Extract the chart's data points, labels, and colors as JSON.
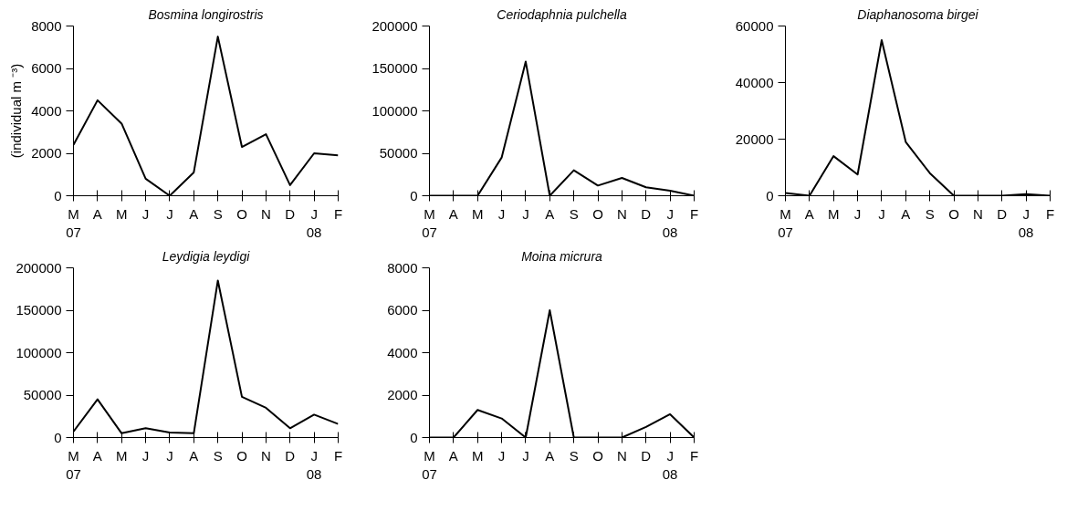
{
  "chart_data": [
    {
      "type": "line",
      "title": "Bosmina longirostris",
      "ylabel": "(individual m ⁻³)",
      "categories": [
        "M\n07",
        "A",
        "M",
        "J",
        "J",
        "A",
        "S",
        "O",
        "N",
        "D",
        "J\n08",
        "F"
      ],
      "series": [
        {
          "color": "#000000",
          "values": [
            2400,
            4500,
            3400,
            800,
            0,
            1100,
            7500,
            2300,
            2900,
            500,
            2000,
            1900
          ]
        }
      ],
      "ylim": [
        0,
        8000
      ],
      "yticks": [
        0,
        2000,
        4000,
        6000,
        8000
      ],
      "line_style": "solid"
    },
    {
      "type": "line",
      "title": "Ceriodaphnia pulchella",
      "categories": [
        "M\n07",
        "A",
        "M",
        "J",
        "J",
        "A",
        "S",
        "O",
        "N",
        "D",
        "J\n08",
        "F"
      ],
      "series": [
        {
          "color": "#000000",
          "values": [
            0,
            0,
            0,
            45000,
            158000,
            0,
            30000,
            12000,
            21000,
            10000,
            6000,
            0
          ]
        }
      ],
      "ylim": [
        0,
        200000
      ],
      "yticks": [
        0,
        50000,
        100000,
        150000,
        200000
      ],
      "line_style": "solid"
    },
    {
      "type": "line",
      "title": "Diaphanosoma birgei",
      "categories": [
        "M\n07",
        "A",
        "M",
        "J",
        "J",
        "A",
        "S",
        "O",
        "N",
        "D",
        "J\n08",
        "F"
      ],
      "series": [
        {
          "color": "#000000",
          "values": [
            1000,
            0,
            14000,
            7500,
            55000,
            19000,
            8000,
            0,
            0,
            0,
            600,
            0
          ]
        }
      ],
      "ylim": [
        0,
        60000
      ],
      "yticks": [
        0,
        20000,
        40000,
        60000
      ],
      "line_style": "solid"
    },
    {
      "type": "line",
      "title": "Leydigia leydigi",
      "categories": [
        "M\n07",
        "A",
        "M",
        "J",
        "J",
        "A",
        "S",
        "O",
        "N",
        "D",
        "J\n08",
        "F"
      ],
      "series": [
        {
          "color": "#000000",
          "values": [
            7000,
            45000,
            5000,
            11000,
            6000,
            5000,
            185000,
            48000,
            35000,
            11000,
            27000,
            16000
          ]
        }
      ],
      "ylim": [
        0,
        200000
      ],
      "yticks": [
        0,
        50000,
        100000,
        150000,
        200000
      ],
      "line_style": "solid"
    },
    {
      "type": "line",
      "title": "Moina micrura",
      "categories": [
        "M\n07",
        "A",
        "M",
        "J",
        "J",
        "A",
        "S",
        "O",
        "N",
        "D",
        "J\n08",
        "F"
      ],
      "series": [
        {
          "color": "#000000",
          "values": [
            0,
            0,
            1300,
            900,
            0,
            6000,
            0,
            0,
            0,
            500,
            1100,
            0
          ]
        }
      ],
      "ylim": [
        0,
        8000
      ],
      "yticks": [
        0,
        2000,
        4000,
        6000,
        8000
      ],
      "line_style": "solid"
    }
  ]
}
